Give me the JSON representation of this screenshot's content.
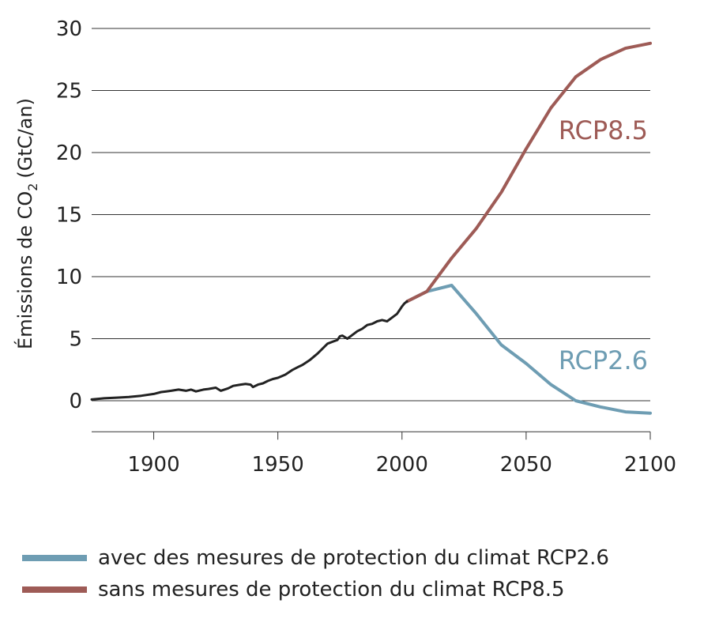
{
  "colors": {
    "historical": "#222222",
    "rcp26": "#6e9db3",
    "rcp85": "#9e5b56",
    "grid": "#333333"
  },
  "chart_data": {
    "type": "line",
    "ylabel_main": "Émissions de CO",
    "ylabel_sub": "2",
    "ylabel_unit": "(GtC/an)",
    "xlim": [
      1875,
      2100
    ],
    "ylim": [
      -2.5,
      30
    ],
    "x_ticks": [
      1900,
      1950,
      2000,
      2050,
      2100
    ],
    "y_ticks": [
      0,
      5,
      10,
      15,
      20,
      25,
      30
    ],
    "grid": "horizontal",
    "series": [
      {
        "key": "historical",
        "x": [
          1875,
          1880,
          1885,
          1890,
          1895,
          1900,
          1903,
          1905,
          1907,
          1910,
          1913,
          1915,
          1917,
          1919,
          1920,
          1922,
          1925,
          1927,
          1930,
          1932,
          1935,
          1937,
          1939,
          1940,
          1942,
          1944,
          1946,
          1948,
          1950,
          1953,
          1956,
          1958,
          1960,
          1963,
          1966,
          1968,
          1970,
          1972,
          1974,
          1975,
          1976,
          1978,
          1980,
          1982,
          1984,
          1986,
          1988,
          1990,
          1992,
          1994,
          1996,
          1998,
          2000,
          2001,
          2002
        ],
        "y": [
          0.1,
          0.2,
          0.25,
          0.3,
          0.4,
          0.55,
          0.7,
          0.75,
          0.8,
          0.9,
          0.8,
          0.9,
          0.75,
          0.85,
          0.9,
          0.95,
          1.05,
          0.8,
          1.0,
          1.2,
          1.3,
          1.35,
          1.3,
          1.1,
          1.3,
          1.4,
          1.6,
          1.75,
          1.85,
          2.1,
          2.5,
          2.7,
          2.9,
          3.3,
          3.8,
          4.2,
          4.6,
          4.75,
          4.9,
          5.2,
          5.25,
          5.0,
          5.3,
          5.6,
          5.8,
          6.1,
          6.2,
          6.4,
          6.5,
          6.4,
          6.7,
          7.0,
          7.6,
          7.85,
          8.0
        ]
      },
      {
        "key": "rcp26",
        "name": "RCP2.6",
        "x": [
          2002,
          2005,
          2010,
          2020,
          2030,
          2040,
          2050,
          2060,
          2070,
          2080,
          2090,
          2100
        ],
        "y": [
          8.0,
          8.3,
          8.8,
          9.3,
          7.0,
          4.5,
          3.0,
          1.3,
          0.0,
          -0.5,
          -0.9,
          -1.0
        ]
      },
      {
        "key": "rcp85",
        "name": "RCP8.5",
        "x": [
          2002,
          2005,
          2010,
          2020,
          2030,
          2040,
          2050,
          2060,
          2070,
          2080,
          2090,
          2100
        ],
        "y": [
          8.0,
          8.3,
          8.8,
          11.5,
          13.9,
          16.8,
          20.3,
          23.6,
          26.1,
          27.5,
          28.4,
          28.8
        ]
      }
    ],
    "annotations": [
      {
        "key": "rcp85",
        "text": "RCP8.5"
      },
      {
        "key": "rcp26",
        "text": "RCP2.6"
      }
    ]
  },
  "legend": [
    {
      "key": "rcp26",
      "text": "avec des mesures de protection du climat RCP2.6"
    },
    {
      "key": "rcp85",
      "text": "sans mesures de protection du climat RCP8.5"
    }
  ]
}
